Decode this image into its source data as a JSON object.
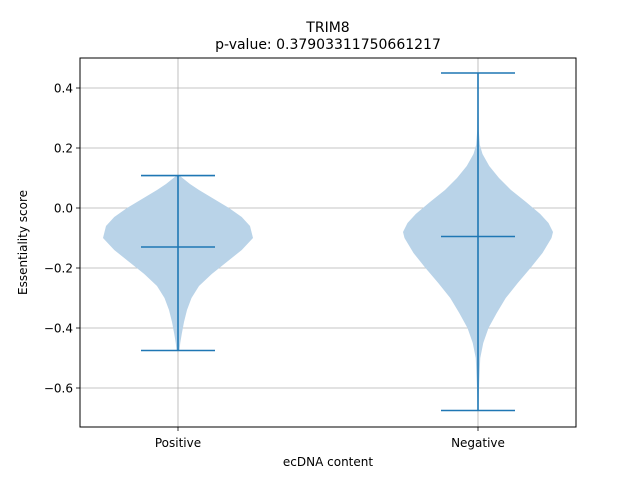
{
  "chart_data": {
    "type": "violin",
    "title": "TRIM8",
    "subtitle": "p-value: 0.37903311750661217",
    "xlabel": "ecDNA content",
    "ylabel": "Essentiality score",
    "categories": [
      "Positive",
      "Negative"
    ],
    "ylim": [
      -0.73,
      0.5
    ],
    "yticks": [
      -0.6,
      -0.4,
      -0.2,
      0.0,
      0.2,
      0.4
    ],
    "ytick_labels": [
      "−0.6",
      "−0.4",
      "−0.2",
      "0.0",
      "0.2",
      "0.4"
    ],
    "grid": true,
    "violins": [
      {
        "category": "Positive",
        "min": -0.475,
        "max": 0.108,
        "median": -0.13,
        "density": [
          [
            -0.475,
            0.02
          ],
          [
            -0.45,
            0.03
          ],
          [
            -0.42,
            0.05
          ],
          [
            -0.38,
            0.08
          ],
          [
            -0.34,
            0.12
          ],
          [
            -0.3,
            0.18
          ],
          [
            -0.26,
            0.28
          ],
          [
            -0.22,
            0.45
          ],
          [
            -0.18,
            0.65
          ],
          [
            -0.14,
            0.85
          ],
          [
            -0.1,
            1.0
          ],
          [
            -0.06,
            0.96
          ],
          [
            -0.03,
            0.85
          ],
          [
            0.0,
            0.68
          ],
          [
            0.03,
            0.48
          ],
          [
            0.06,
            0.28
          ],
          [
            0.08,
            0.16
          ],
          [
            0.1,
            0.06
          ],
          [
            0.108,
            0.02
          ]
        ]
      },
      {
        "category": "Negative",
        "min": -0.675,
        "max": 0.45,
        "median": -0.095,
        "density": [
          [
            -0.675,
            0.005
          ],
          [
            -0.62,
            0.01
          ],
          [
            -0.56,
            0.02
          ],
          [
            -0.5,
            0.03
          ],
          [
            -0.45,
            0.07
          ],
          [
            -0.4,
            0.14
          ],
          [
            -0.35,
            0.25
          ],
          [
            -0.3,
            0.37
          ],
          [
            -0.25,
            0.53
          ],
          [
            -0.2,
            0.7
          ],
          [
            -0.15,
            0.86
          ],
          [
            -0.1,
            0.98
          ],
          [
            -0.08,
            1.0
          ],
          [
            -0.05,
            0.94
          ],
          [
            -0.02,
            0.83
          ],
          [
            0.02,
            0.64
          ],
          [
            0.06,
            0.44
          ],
          [
            0.1,
            0.28
          ],
          [
            0.14,
            0.15
          ],
          [
            0.18,
            0.06
          ],
          [
            0.21,
            0.025
          ],
          [
            0.26,
            0.01
          ],
          [
            0.32,
            0.007
          ],
          [
            0.38,
            0.006
          ],
          [
            0.42,
            0.005
          ],
          [
            0.45,
            0.003
          ]
        ]
      }
    ],
    "colors": {
      "body": "#b9d3e8",
      "lines": "#1f77b4",
      "grid": "#b0b0b0"
    }
  }
}
